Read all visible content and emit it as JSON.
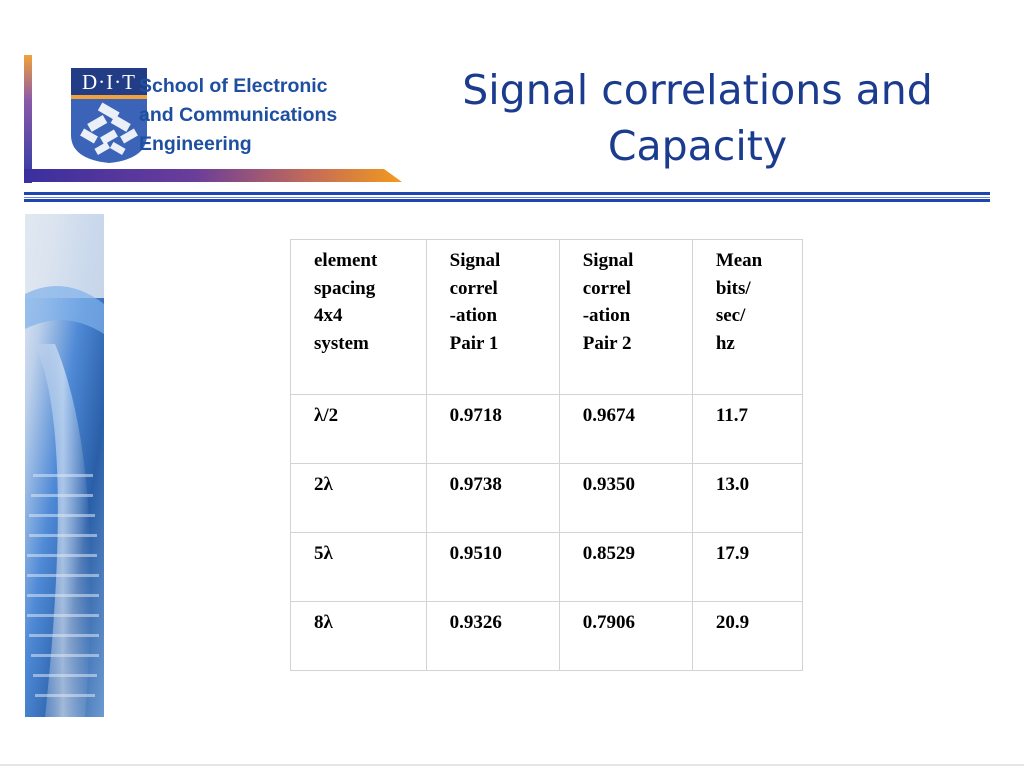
{
  "header": {
    "logo_text": "D·I·T",
    "school_lines": [
      "School of Electronic",
      "and Communications",
      "Engineering"
    ]
  },
  "title": {
    "lines": [
      "Signal correlations and",
      "Capacity"
    ]
  },
  "table": {
    "headers": [
      [
        "element",
        "spacing",
        "4x4",
        "system"
      ],
      [
        "Signal",
        "correl",
        "-ation",
        "Pair 1"
      ],
      [
        "Signal",
        "correl",
        "-ation",
        "Pair 2"
      ],
      [
        "Mean",
        "bits/",
        "sec/",
        "hz"
      ]
    ],
    "rows": [
      [
        "λ/2",
        "0.9718",
        "0.9674",
        "11.7"
      ],
      [
        "2λ",
        "0.9738",
        "0.9350",
        "13.0"
      ],
      [
        "5λ",
        "0.9510",
        "0.8529",
        "17.9"
      ],
      [
        "8λ",
        "0.9326",
        "0.7906",
        "20.9"
      ]
    ]
  },
  "colors": {
    "title": "#1b3b8f",
    "school_text": "#1f4fa0",
    "rule": "#1f45b0",
    "banner_orange": "#f39a1d"
  }
}
